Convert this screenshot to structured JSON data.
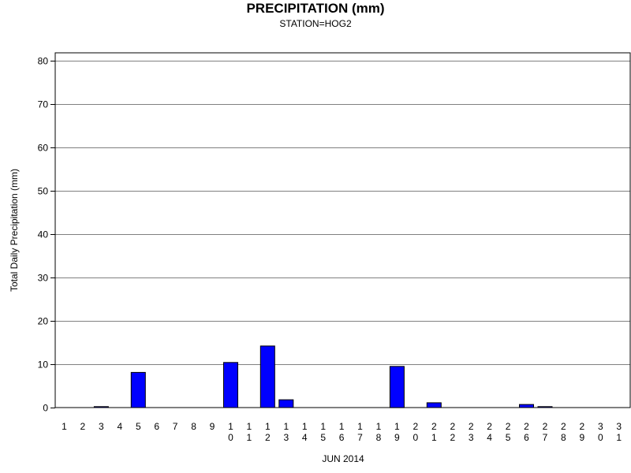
{
  "chart_data": {
    "type": "bar",
    "title": "PRECIPITATION (mm)",
    "subtitle": "STATION=HOG2",
    "xlabel": "JUN 2014",
    "ylabel": "Total Daily Precipitation (mm)",
    "ylim": [
      0,
      80
    ],
    "yticks": [
      "0",
      "10",
      "20",
      "30",
      "40",
      "50",
      "60",
      "70",
      "80"
    ],
    "grid": true,
    "bar_color": "#0000ff",
    "categories": [
      "1",
      "2",
      "3",
      "4",
      "5",
      "6",
      "7",
      "8",
      "9",
      "10",
      "11",
      "12",
      "13",
      "14",
      "15",
      "16",
      "17",
      "18",
      "19",
      "20",
      "21",
      "22",
      "23",
      "24",
      "25",
      "26",
      "27",
      "28",
      "29",
      "30",
      "31"
    ],
    "values": [
      0,
      0,
      0.2,
      0,
      8.1,
      0,
      0,
      0,
      0,
      10.4,
      0,
      14.2,
      1.8,
      0,
      0,
      0,
      0,
      0,
      9.5,
      0,
      1.1,
      0,
      0,
      0,
      0,
      0.7,
      0.2,
      0,
      0,
      0,
      0
    ]
  }
}
